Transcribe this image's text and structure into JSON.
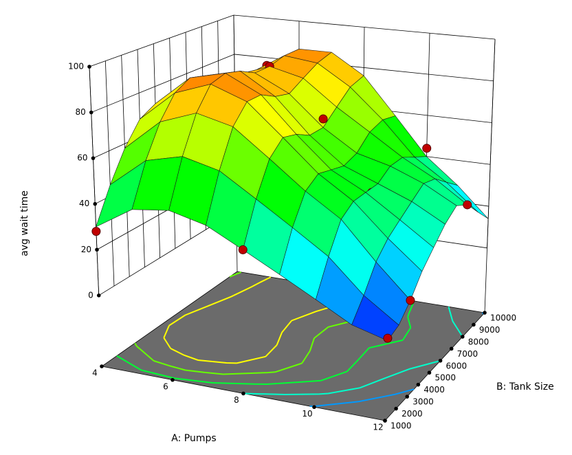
{
  "chart_data": {
    "type": "surface",
    "xlabel": "A: Pumps",
    "ylabel": "B: Tank Size",
    "zlabel": "avg wait time",
    "xlim": [
      4,
      12
    ],
    "ylim": [
      1000,
      10000
    ],
    "zlim": [
      0,
      100
    ],
    "xticks": [
      4,
      6,
      8,
      10,
      12
    ],
    "yticks": [
      1000,
      2000,
      3000,
      4000,
      5000,
      6000,
      7000,
      8000,
      9000,
      10000
    ],
    "zticks": [
      0,
      20,
      40,
      60,
      80,
      100
    ],
    "x_grid": [
      4,
      5,
      6,
      7,
      8,
      9,
      10,
      11,
      12
    ],
    "y_grid": [
      1000,
      2000,
      3000,
      4000,
      5000,
      6000,
      7000,
      8000,
      9000,
      10000
    ],
    "z": [
      [
        30,
        45,
        58,
        68,
        72,
        72,
        70,
        66,
        62,
        58
      ],
      [
        40,
        58,
        72,
        82,
        86,
        84,
        80,
        78,
        76,
        74
      ],
      [
        42,
        62,
        78,
        88,
        90,
        88,
        84,
        84,
        86,
        86
      ],
      [
        38,
        58,
        74,
        82,
        82,
        78,
        76,
        80,
        84,
        86
      ],
      [
        30,
        48,
        62,
        68,
        66,
        62,
        62,
        68,
        74,
        76
      ],
      [
        22,
        38,
        50,
        54,
        52,
        50,
        52,
        58,
        60,
        58
      ],
      [
        14,
        28,
        40,
        44,
        44,
        44,
        48,
        48,
        44,
        40
      ],
      [
        6,
        14,
        24,
        30,
        34,
        38,
        42,
        40,
        34,
        28
      ],
      [
        2,
        4,
        10,
        18,
        24,
        30,
        34,
        30,
        22,
        14
      ]
    ],
    "points": {
      "x": [
        4,
        4,
        5,
        6,
        6,
        7,
        8,
        8,
        10,
        10,
        12,
        12,
        12
      ],
      "y": [
        1000,
        5500,
        10000,
        3000,
        8000,
        4500,
        1000,
        7000,
        5500,
        10000,
        1000,
        3000,
        8000
      ],
      "z": [
        28,
        70,
        76,
        62,
        84,
        78,
        30,
        66,
        42,
        44,
        3,
        10,
        30
      ]
    },
    "colormap": [
      "#0000ff",
      "#00ffff",
      "#00ff00",
      "#ffff00",
      "#ff0000"
    ],
    "contour_levels": [
      15,
      30,
      45,
      60,
      75
    ],
    "floor_color": "#6b6b6b",
    "point_color": "#c00000"
  }
}
